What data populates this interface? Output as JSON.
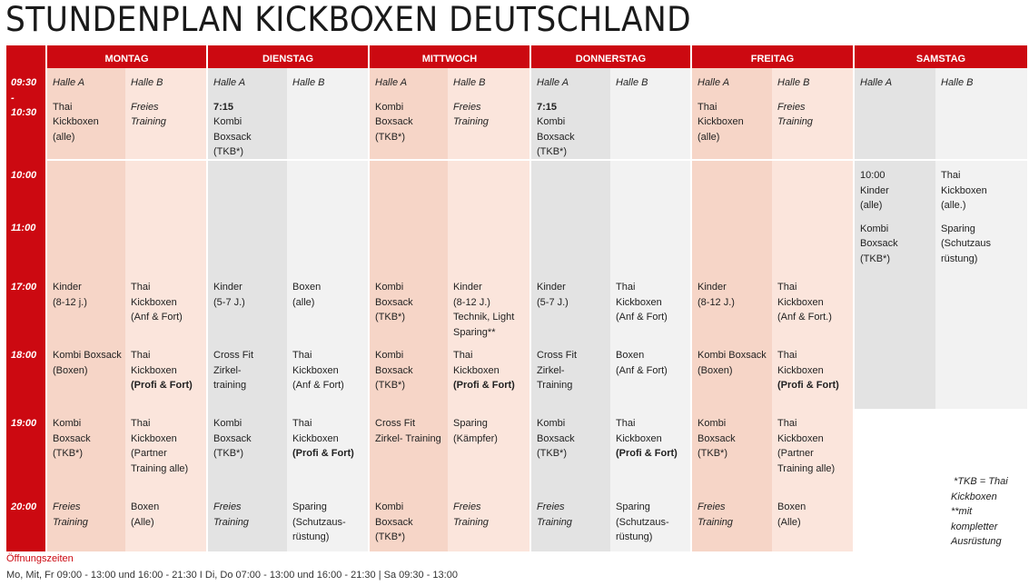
{
  "title": "STUNDENPLAN KICKBOXEN DEUTSCHLAND",
  "colors": {
    "red": "#cc0911",
    "peach_a": "#f6d5c7",
    "peach_b": "#fbe5dc",
    "gray_a": "#e3e3e3",
    "gray_b": "#f2f2f2"
  },
  "days": [
    {
      "name": "MONTAG",
      "halls": [
        "Halle A",
        "Halle B"
      ],
      "tone": "p"
    },
    {
      "name": "DIENSTAG",
      "halls": [
        "Halle A",
        "Halle B"
      ],
      "tone": "g"
    },
    {
      "name": "MITTWOCH",
      "halls": [
        "Halle A",
        "Halle B"
      ],
      "tone": "p"
    },
    {
      "name": "DONNERSTAG",
      "halls": [
        "Halle A",
        "Halle B"
      ],
      "tone": "g"
    },
    {
      "name": "FREITAG",
      "halls": [
        "Halle A",
        "Halle B"
      ],
      "tone": "p"
    },
    {
      "name": "SAMSTAG",
      "halls": [
        "Halle A",
        "Halle B"
      ],
      "tone": "g"
    }
  ],
  "rows": [
    {
      "time": [
        "09:30",
        "-",
        "10:30"
      ],
      "cells": [
        [
          "Thai",
          "Kickboxen",
          "(alle)"
        ],
        [
          {
            "t": "Freies",
            "s": "i"
          },
          {
            "t": "Training",
            "s": "i"
          }
        ],
        [
          {
            "t": "7:15",
            "s": "b"
          },
          "Kombi",
          "Boxsack",
          "(TKB*)"
        ],
        [],
        [
          "Kombi",
          "Boxsack",
          "(TKB*)"
        ],
        [
          {
            "t": "Freies",
            "s": "i"
          },
          {
            "t": "Training",
            "s": "i"
          }
        ],
        [
          {
            "t": "7:15",
            "s": "b"
          },
          "Kombi",
          "Boxsack",
          "(TKB*)"
        ],
        [],
        [
          "Thai",
          "Kickboxen",
          "(alle)"
        ],
        [
          {
            "t": "Freies",
            "s": "i"
          },
          {
            "t": "Training",
            "s": "i"
          }
        ],
        [],
        []
      ]
    },
    {
      "time": [
        "10:00",
        "11:00"
      ],
      "cells": [
        [],
        [],
        [],
        [],
        [],
        [],
        [],
        [],
        [],
        [],
        [
          "10:00",
          "Kinder",
          "(alle)",
          {
            "t": "",
            "s": "gap"
          },
          "Kombi",
          "Boxsack",
          "(TKB*)"
        ],
        [
          "Thai",
          "Kickboxen",
          "(alle.)",
          {
            "t": "",
            "s": "gap"
          },
          "Sparing",
          "(Schutzaus",
          "rüstung)"
        ]
      ]
    },
    {
      "time": [
        "17:00"
      ],
      "cells": [
        [
          "Kinder",
          "(8-12 j.)"
        ],
        [
          "Thai",
          "Kickboxen",
          "(Anf & Fort)"
        ],
        [
          "Kinder",
          "(5-7 J.)"
        ],
        [
          "Boxen",
          "(alle)"
        ],
        [
          "Kombi",
          "Boxsack",
          "(TKB*)"
        ],
        [
          "Kinder",
          "(8-12 J.)",
          "Technik, Light",
          "Sparing**"
        ],
        [
          "Kinder",
          "(5-7 J.)"
        ],
        [
          "Thai",
          "Kickboxen",
          "(Anf & Fort)"
        ],
        [
          "Kinder",
          "(8-12 J.)"
        ],
        [
          "Thai",
          "Kickboxen",
          "(Anf & Fort.)"
        ],
        [],
        []
      ]
    },
    {
      "time": [
        "18:00"
      ],
      "cells": [
        [
          "Kombi Boxsack",
          "(Boxen)"
        ],
        [
          "Thai",
          "Kickboxen",
          {
            "t": "(Profi & Fort)",
            "s": "b"
          }
        ],
        [
          "Cross Fit",
          "Zirkel-",
          "training"
        ],
        [
          "Thai",
          "Kickboxen",
          "(Anf & Fort)"
        ],
        [
          "Kombi",
          "Boxsack",
          "(TKB*)"
        ],
        [
          "Thai",
          "Kickboxen",
          {
            "t": "(Profi & Fort)",
            "s": "b"
          }
        ],
        [
          "Cross Fit",
          "Zirkel-",
          "Training"
        ],
        [
          "Boxen",
          "(Anf & Fort)"
        ],
        [
          "Kombi Boxsack",
          "(Boxen)"
        ],
        [
          "Thai",
          "Kickboxen",
          {
            "t": "(Profi & Fort)",
            "s": "b"
          }
        ],
        [],
        []
      ]
    },
    {
      "time": [
        "19:00"
      ],
      "cells": [
        [
          "Kombi",
          "Boxsack",
          "(TKB*)"
        ],
        [
          "Thai",
          "Kickboxen",
          "(Partner",
          "Training alle)"
        ],
        [
          "Kombi",
          "Boxsack",
          "(TKB*)"
        ],
        [
          "Thai",
          "Kickboxen",
          {
            "t": "(Profi & Fort)",
            "s": "b"
          }
        ],
        [
          "Cross Fit",
          "Zirkel- Training"
        ],
        [
          "Sparing",
          "(Kämpfer)"
        ],
        [
          "Kombi",
          "Boxsack",
          "(TKB*)"
        ],
        [
          "Thai",
          "Kickboxen",
          {
            "t": "(Profi & Fort)",
            "s": "b"
          }
        ],
        [
          "Kombi",
          "Boxsack",
          "(TKB*)"
        ],
        [
          "Thai",
          "Kickboxen",
          "(Partner",
          "Training alle)"
        ],
        null,
        null
      ]
    },
    {
      "time": [
        "20:00"
      ],
      "cells": [
        [
          {
            "t": "Freies",
            "s": "i"
          },
          {
            "t": "Training",
            "s": "i"
          }
        ],
        [
          "Boxen",
          "(Alle)"
        ],
        [
          {
            "t": "Freies",
            "s": "i"
          },
          {
            "t": "Training",
            "s": "i"
          }
        ],
        [
          "Sparing",
          "(Schutzaus-",
          "rüstung)"
        ],
        [
          "Kombi",
          "Boxsack",
          "(TKB*)"
        ],
        [
          {
            "t": "Freies",
            "s": "i"
          },
          {
            "t": "Training",
            "s": "i"
          }
        ],
        [
          {
            "t": "Freies",
            "s": "i"
          },
          {
            "t": "Training",
            "s": "i"
          }
        ],
        [
          "Sparing",
          "(Schutzaus-",
          "rüstung)"
        ],
        [
          {
            "t": "Freies",
            "s": "i"
          },
          {
            "t": "Training",
            "s": "i"
          }
        ],
        [
          "Boxen",
          "(Alle)"
        ],
        null,
        null
      ]
    }
  ],
  "footnote": [
    " *TKB = Thai",
    "Kickboxen",
    "**mit",
    "kompletter",
    "Ausrüstung"
  ],
  "opening": {
    "label": "Öffnungszeiten",
    "hours": "Mo, Mit, Fr 09:00 - 13:00 und 16:00 - 21:30 I Di, Do 07:00 - 13:00 und 16:00 - 21:30  | Sa 09:30 - 13:00"
  }
}
